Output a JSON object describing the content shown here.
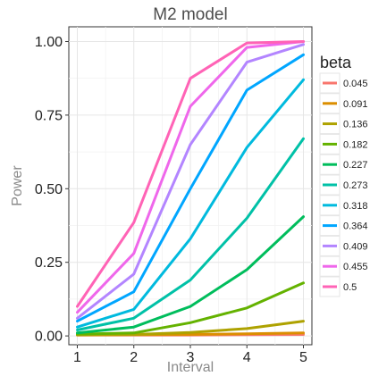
{
  "chart_data": {
    "type": "line",
    "title": "M2 model",
    "xlabel": "Interval",
    "ylabel": "Power",
    "x": [
      1,
      2,
      3,
      4,
      5
    ],
    "xlim": [
      0.85,
      5.15
    ],
    "ylim": [
      -0.03,
      1.05
    ],
    "xticks": [
      "1",
      "2",
      "3",
      "4",
      "5"
    ],
    "yticks": [
      "0.00",
      "0.25",
      "0.50",
      "0.75",
      "1.00"
    ],
    "ytick_values": [
      0,
      0.25,
      0.5,
      0.75,
      1.0
    ],
    "grid": true,
    "legend": {
      "title": "beta",
      "position": "right"
    },
    "series": [
      {
        "name": "0.045",
        "color": "#F8766D",
        "values": [
          0.003,
          0.003,
          0.003,
          0.004,
          0.005
        ]
      },
      {
        "name": "0.091",
        "color": "#DB8E00",
        "values": [
          0.003,
          0.004,
          0.005,
          0.007,
          0.01
        ]
      },
      {
        "name": "0.136",
        "color": "#AEA200",
        "values": [
          0.004,
          0.005,
          0.012,
          0.025,
          0.05
        ]
      },
      {
        "name": "0.182",
        "color": "#64B200",
        "values": [
          0.006,
          0.01,
          0.045,
          0.095,
          0.18
        ]
      },
      {
        "name": "0.227",
        "color": "#00BD5C",
        "values": [
          0.01,
          0.03,
          0.1,
          0.225,
          0.405
        ]
      },
      {
        "name": "0.273",
        "color": "#00C1A7",
        "values": [
          0.02,
          0.06,
          0.19,
          0.4,
          0.67
        ]
      },
      {
        "name": "0.318",
        "color": "#00BADE",
        "values": [
          0.03,
          0.09,
          0.33,
          0.64,
          0.87
        ]
      },
      {
        "name": "0.364",
        "color": "#00A6FF",
        "values": [
          0.05,
          0.15,
          0.5,
          0.835,
          0.955
        ]
      },
      {
        "name": "0.409",
        "color": "#B385FF",
        "values": [
          0.06,
          0.21,
          0.65,
          0.93,
          0.99
        ]
      },
      {
        "name": "0.455",
        "color": "#EF67EB",
        "values": [
          0.08,
          0.28,
          0.78,
          0.98,
          1.0
        ]
      },
      {
        "name": "0.5",
        "color": "#FF63B6",
        "values": [
          0.1,
          0.385,
          0.875,
          0.995,
          1.0
        ]
      }
    ]
  }
}
